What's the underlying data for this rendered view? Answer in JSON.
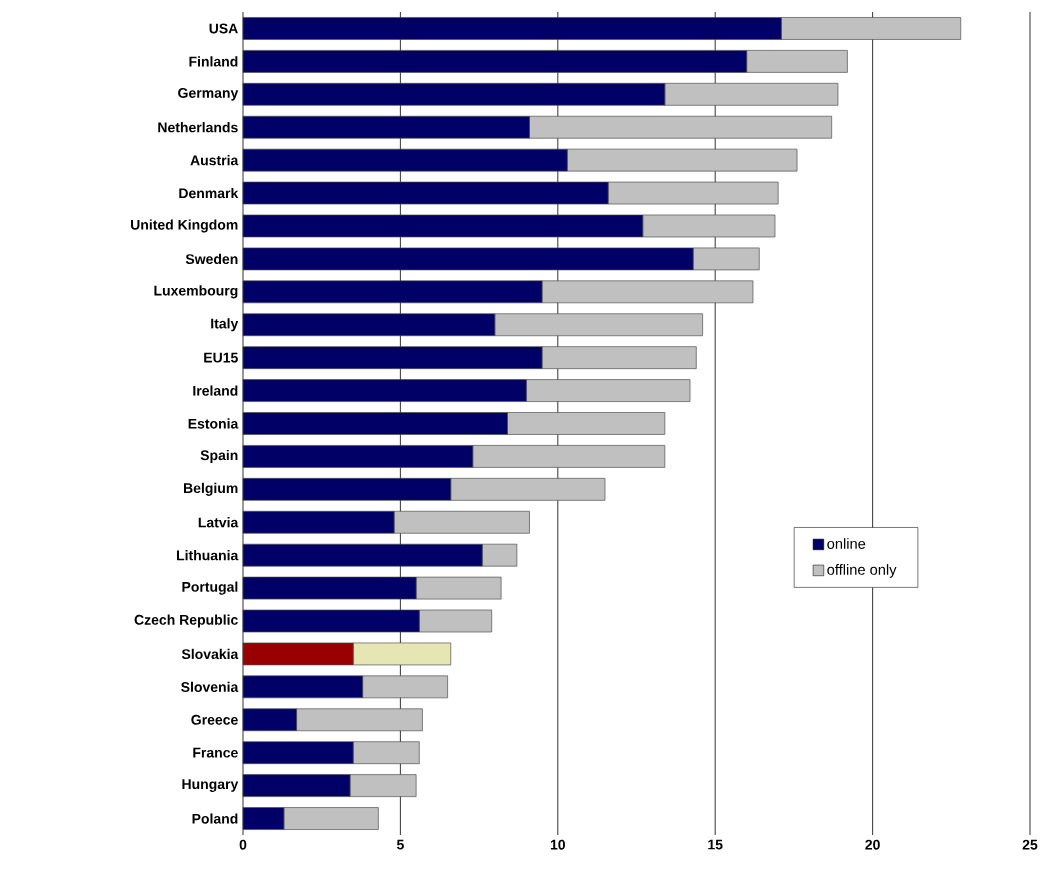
{
  "chart_data": {
    "type": "bar",
    "orientation": "horizontal",
    "stacked": true,
    "categories": [
      "USA",
      "Finland",
      "Germany",
      "Netherlands",
      "Austria",
      "Denmark",
      "United Kingdom",
      "Sweden",
      "Luxembourg",
      "Italy",
      "EU15",
      "Ireland",
      "Estonia",
      "Spain",
      "Belgium",
      "Latvia",
      "Lithuania",
      "Portugal",
      "Czech Republic",
      "Slovakia",
      "Slovenia",
      "Greece",
      "France",
      "Hungary",
      "Poland"
    ],
    "series": [
      {
        "name": "online",
        "color": "#000066",
        "colors": [
          "#000066",
          "#000066",
          "#000066",
          "#000066",
          "#000066",
          "#000066",
          "#000066",
          "#000066",
          "#000066",
          "#000066",
          "#000066",
          "#000066",
          "#000066",
          "#000066",
          "#000066",
          "#000066",
          "#000066",
          "#000066",
          "#000066",
          "#990000",
          "#000066",
          "#000066",
          "#000066",
          "#000066",
          "#000066"
        ],
        "values": [
          17.1,
          16.0,
          13.4,
          9.1,
          10.3,
          11.6,
          12.7,
          14.3,
          9.5,
          8.0,
          9.5,
          9.0,
          8.4,
          7.3,
          6.6,
          4.8,
          7.6,
          5.5,
          5.6,
          3.5,
          3.8,
          1.7,
          3.5,
          3.4,
          1.3
        ]
      },
      {
        "name": "offline only",
        "color": "#c0c0c0",
        "colors": [
          "#c0c0c0",
          "#c0c0c0",
          "#c0c0c0",
          "#c0c0c0",
          "#c0c0c0",
          "#c0c0c0",
          "#c0c0c0",
          "#c0c0c0",
          "#c0c0c0",
          "#c0c0c0",
          "#c0c0c0",
          "#c0c0c0",
          "#c0c0c0",
          "#c0c0c0",
          "#c0c0c0",
          "#c0c0c0",
          "#c0c0c0",
          "#c0c0c0",
          "#c0c0c0",
          "#e6e6b4",
          "#c0c0c0",
          "#c0c0c0",
          "#c0c0c0",
          "#c0c0c0",
          "#c0c0c0"
        ],
        "values": [
          5.7,
          3.2,
          5.5,
          9.6,
          7.3,
          5.4,
          4.2,
          2.1,
          6.7,
          6.6,
          4.9,
          5.2,
          5.0,
          6.1,
          4.9,
          4.3,
          1.1,
          2.7,
          2.3,
          3.1,
          2.7,
          4.0,
          2.1,
          2.1,
          3.0
        ]
      }
    ],
    "xlim": [
      0,
      25
    ],
    "xticks": [
      0,
      5,
      10,
      15,
      20,
      25
    ],
    "grid": "x",
    "legend": "right"
  }
}
